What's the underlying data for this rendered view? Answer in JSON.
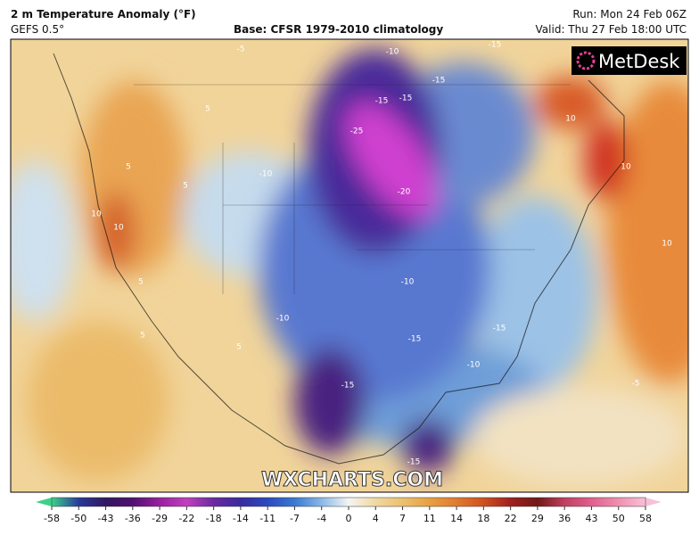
{
  "header": {
    "title": "2 m Temperature Anomaly (°F)",
    "model": "GEFS 0.5°",
    "base": "Base: CFSR 1979-2010 climatology",
    "run": "Run: Mon 24 Feb 06Z",
    "valid": "Valid: Thu 27 Feb 18:00 UTC"
  },
  "logo": "MetDesk",
  "watermark": "WXCHARTS.COM",
  "colorbar": {
    "ticks": [
      -58,
      -50,
      -43,
      -36,
      -29,
      -22,
      -18,
      -14,
      -11,
      -7,
      -4,
      0,
      4,
      7,
      11,
      14,
      18,
      22,
      29,
      36,
      43,
      50,
      58
    ]
  },
  "contour_labels": [
    -5,
    -10,
    -15,
    -15,
    -15,
    -15,
    5,
    5,
    10,
    10,
    -25,
    -10,
    -20,
    10,
    10,
    10,
    5,
    -10,
    5,
    -10,
    5,
    -15,
    -15,
    -10,
    -15,
    -5,
    -15,
    5
  ]
}
